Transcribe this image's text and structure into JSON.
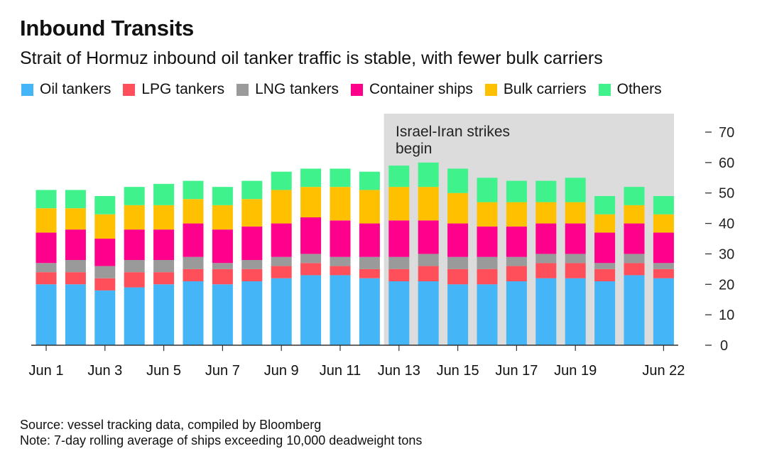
{
  "header": {
    "title": "Inbound Transits",
    "subtitle": "Strait of Hormuz inbound oil tanker traffic is stable, with fewer bulk carriers"
  },
  "legend": [
    {
      "label": "Oil tankers",
      "color": "#44b6f8"
    },
    {
      "label": "LPG tankers",
      "color": "#fe4f5a"
    },
    {
      "label": "LNG tankers",
      "color": "#9a9a9a"
    },
    {
      "label": "Container ships",
      "color": "#ff008c"
    },
    {
      "label": "Bulk carriers",
      "color": "#ffc000"
    },
    {
      "label": "Others",
      "color": "#3ff28c"
    }
  ],
  "annotation": {
    "line1": "Israel-Iran strikes",
    "line2": "begin",
    "shade_color": "#dcdcdc",
    "start_category": "Jun 13",
    "end_category": "Jun 22"
  },
  "footer": {
    "source": "Source: vessel tracking data, compiled by Bloomberg",
    "note": "Note: 7-day rolling average of ships exceeding 10,000 deadweight tons"
  },
  "chart_data": {
    "type": "bar",
    "stacked": true,
    "title": "Inbound Transits",
    "subtitle": "Strait of Hormuz inbound oil tanker traffic is stable, with fewer bulk carriers",
    "xlabel": "",
    "ylabel": "",
    "ylim": [
      0,
      70
    ],
    "yticks": [
      0,
      10,
      20,
      30,
      40,
      50,
      60,
      70
    ],
    "y_axis_side": "right",
    "grid": false,
    "legend_position": "top-left",
    "categories": [
      "Jun 1",
      "Jun 2",
      "Jun 3",
      "Jun 4",
      "Jun 5",
      "Jun 6",
      "Jun 7",
      "Jun 8",
      "Jun 9",
      "Jun 10",
      "Jun 11",
      "Jun 12",
      "Jun 13",
      "Jun 14",
      "Jun 15",
      "Jun 16",
      "Jun 17",
      "Jun 18",
      "Jun 19",
      "Jun 20",
      "Jun 21",
      "Jun 22"
    ],
    "xtick_labels": [
      "Jun 1",
      "",
      "Jun 3",
      "",
      "Jun 5",
      "",
      "Jun 7",
      "",
      "Jun 9",
      "",
      "Jun 11",
      "",
      "Jun 13",
      "",
      "Jun 15",
      "",
      "Jun 17",
      "",
      "Jun 19",
      "",
      "",
      "Jun 22"
    ],
    "xtick_marks": [
      true,
      false,
      true,
      false,
      true,
      false,
      true,
      false,
      true,
      false,
      true,
      false,
      true,
      false,
      true,
      false,
      true,
      false,
      true,
      false,
      false,
      true
    ],
    "series": [
      {
        "name": "Oil tankers",
        "color": "#44b6f8",
        "values": [
          20,
          20,
          18,
          19,
          20,
          21,
          20,
          21,
          22,
          23,
          23,
          22,
          21,
          21,
          20,
          20,
          21,
          22,
          22,
          21,
          23,
          22
        ]
      },
      {
        "name": "LPG tankers",
        "color": "#fe4f5a",
        "values": [
          4,
          4,
          4,
          5,
          4,
          4,
          5,
          4,
          4,
          4,
          3,
          3,
          4,
          5,
          5,
          5,
          5,
          5,
          5,
          4,
          4,
          3
        ]
      },
      {
        "name": "LNG tankers",
        "color": "#9a9a9a",
        "values": [
          3,
          4,
          4,
          4,
          4,
          4,
          2,
          3,
          3,
          3,
          3,
          4,
          4,
          4,
          4,
          4,
          3,
          3,
          3,
          2,
          3,
          2
        ]
      },
      {
        "name": "Container ships",
        "color": "#ff008c",
        "values": [
          10,
          10,
          9,
          10,
          10,
          11,
          11,
          11,
          11,
          12,
          12,
          11,
          12,
          11,
          11,
          10,
          10,
          10,
          10,
          10,
          10,
          10
        ]
      },
      {
        "name": "Bulk carriers",
        "color": "#ffc000",
        "values": [
          8,
          7,
          8,
          8,
          8,
          8,
          8,
          9,
          11,
          10,
          11,
          11,
          11,
          11,
          10,
          8,
          8,
          7,
          7,
          6,
          6,
          6
        ]
      },
      {
        "name": "Others",
        "color": "#3ff28c",
        "values": [
          6,
          6,
          6,
          6,
          7,
          6,
          6,
          6,
          6,
          6,
          6,
          6,
          7,
          8,
          8,
          8,
          7,
          7,
          8,
          6,
          6,
          6
        ]
      }
    ],
    "annotations": [
      {
        "text": "Israel-Iran strikes begin",
        "type": "shaded-range",
        "from": "Jun 13",
        "to": "Jun 22"
      }
    ]
  }
}
